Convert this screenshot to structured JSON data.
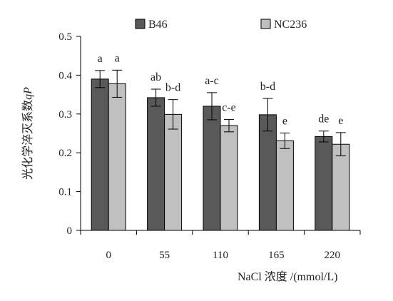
{
  "chart_data": {
    "type": "bar",
    "title": "",
    "categories": [
      "0",
      "55",
      "110",
      "165",
      "220"
    ],
    "xlabel": "NaCl 浓度 /(mmol/L)",
    "ylabel": "光化学淬灭系数qP",
    "ylabel_main": "光化学淬灭系数",
    "ylabel_symbol": "qP",
    "ylim": [
      0,
      0.5
    ],
    "yticks": [
      "0",
      "0.1",
      "0.2",
      "0.3",
      "0.4",
      "0.5"
    ],
    "legend_position": "top",
    "grid": false,
    "series": [
      {
        "name": "B46",
        "color": "#595959",
        "values": [
          0.39,
          0.342,
          0.32,
          0.298,
          0.242
        ],
        "errors": [
          0.022,
          0.022,
          0.035,
          0.042,
          0.014
        ],
        "labels": [
          "a",
          "ab",
          "a-c",
          "b-d",
          "de"
        ]
      },
      {
        "name": "NC236",
        "color": "#c0c0c0",
        "values": [
          0.378,
          0.299,
          0.27,
          0.231,
          0.222
        ],
        "errors": [
          0.035,
          0.038,
          0.016,
          0.02,
          0.03
        ],
        "labels": [
          "a",
          "b-d",
          "c-e",
          "e",
          "e"
        ]
      }
    ]
  }
}
